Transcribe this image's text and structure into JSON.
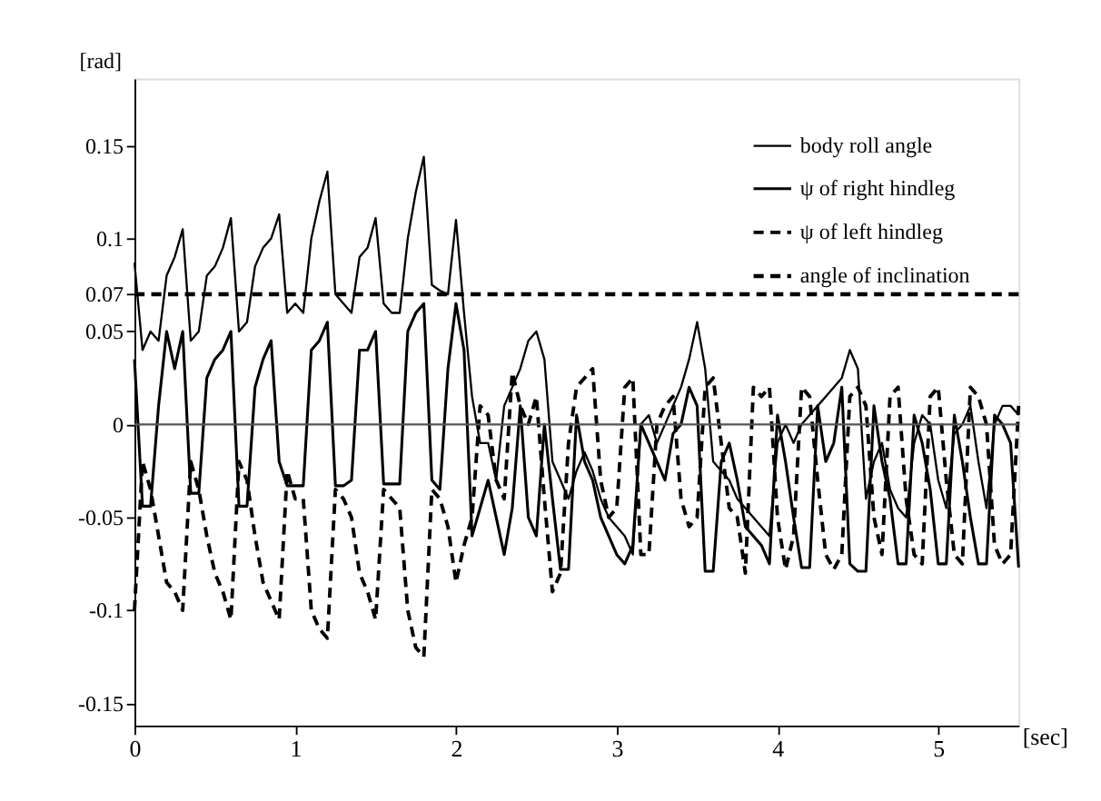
{
  "chart_data": {
    "type": "line",
    "xlabel": "[sec]",
    "ylabel": "[rad]",
    "xlim": [
      0,
      5.5
    ],
    "xticks": [
      0,
      1,
      2,
      3,
      4,
      5
    ],
    "ylim": [
      -0.162,
      0.186
    ],
    "yticks": [
      -0.15,
      -0.1,
      -0.05,
      0,
      0.05,
      0.07,
      0.1,
      0.15
    ],
    "grid": false,
    "legend": "top right",
    "marker": "none",
    "x": [
      0,
      0.05,
      0.1,
      0.15,
      0.2,
      0.25,
      0.3,
      0.35,
      0.4,
      0.45,
      0.5,
      0.55,
      0.6,
      0.65,
      0.7,
      0.75,
      0.8,
      0.85,
      0.9,
      0.95,
      1.0,
      1.05,
      1.1,
      1.15,
      1.2,
      1.25,
      1.3,
      1.35,
      1.4,
      1.45,
      1.5,
      1.55,
      1.6,
      1.65,
      1.7,
      1.75,
      1.8,
      1.85,
      1.9,
      1.95,
      2.0,
      2.05,
      2.1,
      2.15,
      2.2,
      2.25,
      2.3,
      2.35,
      2.4,
      2.45,
      2.5,
      2.55,
      2.6,
      2.65,
      2.7,
      2.75,
      2.8,
      2.85,
      2.9,
      2.95,
      3.0,
      3.05,
      3.1,
      3.15,
      3.2,
      3.25,
      3.3,
      3.35,
      3.4,
      3.45,
      3.5,
      3.55,
      3.6,
      3.65,
      3.7,
      3.75,
      3.8,
      3.85,
      3.9,
      3.95,
      4.0,
      4.05,
      4.1,
      4.15,
      4.2,
      4.25,
      4.3,
      4.35,
      4.4,
      4.45,
      4.5,
      4.55,
      4.6,
      4.65,
      4.7,
      4.75,
      4.8,
      4.85,
      4.9,
      4.95,
      5.0,
      5.05,
      5.1,
      5.15,
      5.2,
      5.25,
      5.3,
      5.35,
      5.4,
      5.45,
      5.5
    ],
    "series": [
      {
        "name": "body roll angle",
        "color": "#000000",
        "line_style": "solid",
        "values": [
          0.087,
          0.04,
          0.05,
          0.045,
          0.08,
          0.09,
          0.105,
          0.045,
          0.05,
          0.08,
          0.085,
          0.095,
          0.111,
          0.05,
          0.055,
          0.085,
          0.095,
          0.1,
          0.113,
          0.06,
          0.065,
          0.06,
          0.1,
          0.12,
          0.136,
          0.07,
          0.065,
          0.06,
          0.09,
          0.095,
          0.111,
          0.065,
          0.06,
          0.06,
          0.1,
          0.125,
          0.144,
          0.075,
          0.072,
          0.07,
          0.11,
          0.06,
          0.015,
          -0.01,
          -0.01,
          -0.03,
          0.01,
          0.02,
          0.03,
          0.045,
          0.05,
          0.035,
          -0.02,
          -0.03,
          -0.04,
          -0.025,
          -0.015,
          -0.025,
          -0.04,
          -0.05,
          -0.055,
          -0.06,
          -0.07,
          0.0,
          0.005,
          -0.01,
          0.0,
          0.01,
          0.02,
          0.035,
          0.055,
          0.03,
          -0.02,
          -0.025,
          -0.03,
          -0.04,
          -0.045,
          -0.05,
          -0.055,
          -0.06,
          -0.01,
          0.0,
          -0.01,
          0.0,
          0.005,
          0.01,
          0.015,
          0.02,
          0.025,
          0.04,
          0.03,
          -0.04,
          -0.02,
          -0.01,
          -0.035,
          -0.045,
          -0.05,
          -0.01,
          0.005,
          0.0,
          -0.03,
          -0.045,
          -0.005,
          0.0,
          0.01,
          -0.02,
          -0.045,
          0.0,
          0.01,
          0.01,
          0.005
        ]
      },
      {
        "name": "ψ of right hindleg",
        "color": "#000000",
        "line_style": "solid",
        "values": [
          0.035,
          -0.044,
          -0.044,
          0.01,
          0.05,
          0.03,
          0.05,
          -0.037,
          -0.037,
          0.025,
          0.035,
          0.04,
          0.05,
          -0.044,
          -0.044,
          0.02,
          0.035,
          0.045,
          -0.02,
          -0.033,
          -0.033,
          -0.033,
          0.04,
          0.045,
          0.055,
          -0.033,
          -0.033,
          -0.03,
          0.04,
          0.04,
          0.05,
          -0.032,
          -0.032,
          -0.032,
          0.05,
          0.06,
          0.065,
          -0.03,
          -0.035,
          0.03,
          0.065,
          0.04,
          -0.06,
          -0.045,
          -0.03,
          -0.05,
          -0.07,
          -0.045,
          0.01,
          -0.05,
          -0.06,
          0.0,
          -0.04,
          -0.078,
          -0.078,
          0.005,
          -0.02,
          -0.03,
          -0.05,
          -0.06,
          -0.07,
          -0.075,
          -0.065,
          0.0,
          -0.01,
          -0.02,
          -0.03,
          -0.005,
          0.0,
          0.02,
          0.01,
          -0.079,
          -0.079,
          -0.02,
          -0.01,
          -0.03,
          -0.055,
          -0.06,
          -0.065,
          -0.075,
          0.005,
          -0.02,
          -0.05,
          -0.077,
          -0.077,
          0.01,
          -0.02,
          -0.01,
          0.02,
          -0.075,
          -0.079,
          -0.079,
          0.01,
          -0.02,
          -0.04,
          -0.075,
          -0.075,
          0.005,
          -0.01,
          -0.035,
          -0.075,
          -0.075,
          0.005,
          -0.02,
          -0.05,
          -0.075,
          -0.075,
          0.005,
          0.0,
          -0.01,
          -0.077
        ]
      },
      {
        "name": "ψ of left hindleg",
        "color": "#000000",
        "line_style": "dashed",
        "values": [
          -0.1,
          -0.02,
          -0.035,
          -0.06,
          -0.085,
          -0.09,
          -0.1,
          -0.02,
          -0.035,
          -0.06,
          -0.08,
          -0.09,
          -0.105,
          -0.02,
          -0.03,
          -0.06,
          -0.085,
          -0.095,
          -0.105,
          -0.025,
          -0.04,
          -0.04,
          -0.1,
          -0.11,
          -0.115,
          -0.035,
          -0.04,
          -0.05,
          -0.08,
          -0.09,
          -0.105,
          -0.035,
          -0.04,
          -0.045,
          -0.1,
          -0.12,
          -0.125,
          -0.035,
          -0.04,
          -0.055,
          -0.085,
          -0.065,
          -0.05,
          0.01,
          0.005,
          -0.03,
          -0.04,
          0.028,
          0.01,
          0.0,
          0.015,
          -0.04,
          -0.09,
          -0.08,
          -0.01,
          0.02,
          0.025,
          0.03,
          -0.03,
          -0.05,
          -0.045,
          0.02,
          0.025,
          -0.07,
          -0.07,
          0.0,
          0.01,
          0.015,
          -0.04,
          -0.055,
          -0.05,
          0.02,
          0.025,
          -0.01,
          -0.045,
          -0.05,
          -0.08,
          0.02,
          0.015,
          0.02,
          -0.05,
          -0.078,
          -0.06,
          0.02,
          0.015,
          -0.03,
          -0.07,
          -0.078,
          -0.07,
          0.015,
          0.02,
          0.01,
          -0.05,
          -0.07,
          0.015,
          0.02,
          -0.04,
          -0.07,
          -0.075,
          0.015,
          0.02,
          -0.03,
          -0.07,
          -0.075,
          0.02,
          0.015,
          0.0,
          -0.065,
          -0.075,
          -0.07,
          0.01
        ]
      }
    ],
    "ref_lines": [
      {
        "axis": "y",
        "value": 0.07,
        "label": "angle of inclination",
        "color": "#000000",
        "line_style": "dashed"
      },
      {
        "axis": "y",
        "value": 0,
        "color": "#555555",
        "line_style": "solid"
      }
    ]
  }
}
